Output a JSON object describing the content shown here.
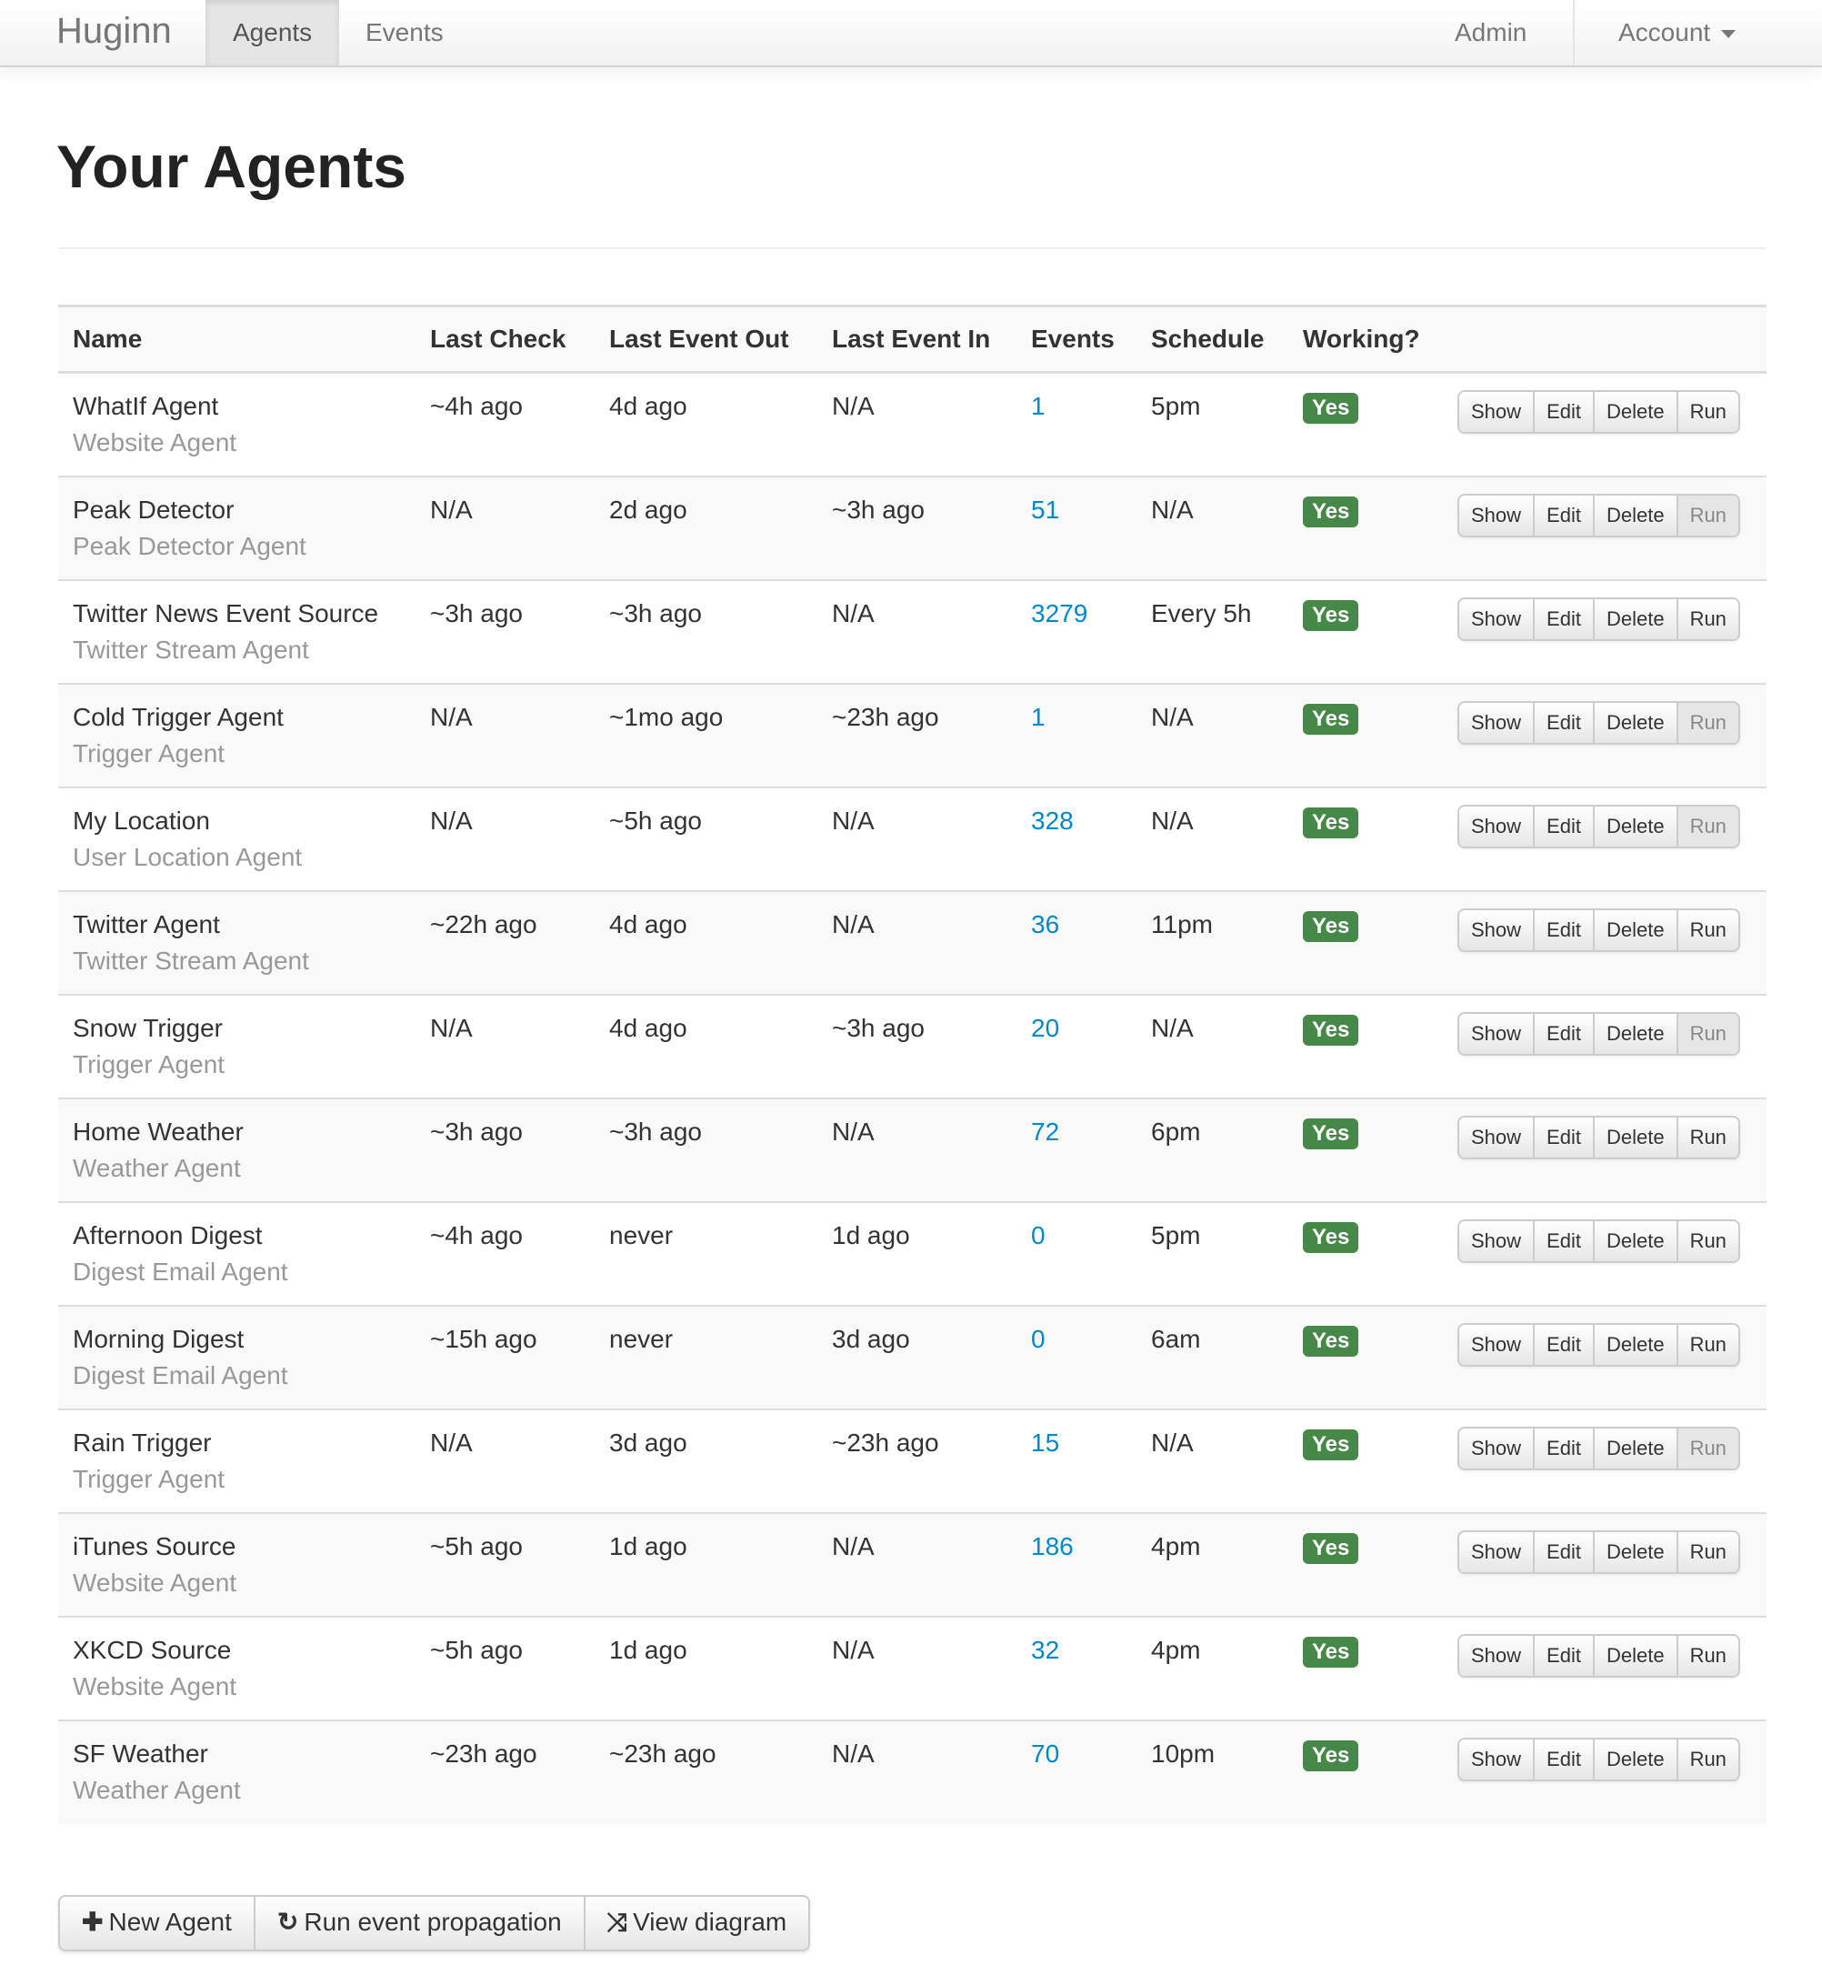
{
  "nav": {
    "brand": "Huginn",
    "items": [
      "Agents",
      "Events"
    ],
    "active": "Agents",
    "admin": "Admin",
    "account": "Account"
  },
  "page_title": "Your Agents",
  "table": {
    "headers": [
      "Name",
      "Last Check",
      "Last Event Out",
      "Last Event In",
      "Events",
      "Schedule",
      "Working?"
    ],
    "actions": [
      "Show",
      "Edit",
      "Delete",
      "Run"
    ],
    "working_label": "Yes",
    "rows": [
      {
        "name": "WhatIf Agent",
        "type": "Website Agent",
        "last_check": "~4h ago",
        "last_out": "4d ago",
        "last_in": "N/A",
        "events": "1",
        "schedule": "5pm",
        "run_enabled": true
      },
      {
        "name": "Peak Detector",
        "type": "Peak Detector Agent",
        "last_check": "N/A",
        "last_out": "2d ago",
        "last_in": "~3h ago",
        "events": "51",
        "schedule": "N/A",
        "run_enabled": false
      },
      {
        "name": "Twitter News Event Source",
        "type": "Twitter Stream Agent",
        "last_check": "~3h ago",
        "last_out": "~3h ago",
        "last_in": "N/A",
        "events": "3279",
        "schedule": "Every 5h",
        "run_enabled": true
      },
      {
        "name": "Cold Trigger Agent",
        "type": "Trigger Agent",
        "last_check": "N/A",
        "last_out": "~1mo ago",
        "last_in": "~23h ago",
        "events": "1",
        "schedule": "N/A",
        "run_enabled": false
      },
      {
        "name": "My Location",
        "type": "User Location Agent",
        "last_check": "N/A",
        "last_out": "~5h ago",
        "last_in": "N/A",
        "events": "328",
        "schedule": "N/A",
        "run_enabled": false
      },
      {
        "name": "Twitter Agent",
        "type": "Twitter Stream Agent",
        "last_check": "~22h ago",
        "last_out": "4d ago",
        "last_in": "N/A",
        "events": "36",
        "schedule": "11pm",
        "run_enabled": true
      },
      {
        "name": "Snow Trigger",
        "type": "Trigger Agent",
        "last_check": "N/A",
        "last_out": "4d ago",
        "last_in": "~3h ago",
        "events": "20",
        "schedule": "N/A",
        "run_enabled": false
      },
      {
        "name": "Home Weather",
        "type": "Weather Agent",
        "last_check": "~3h ago",
        "last_out": "~3h ago",
        "last_in": "N/A",
        "events": "72",
        "schedule": "6pm",
        "run_enabled": true
      },
      {
        "name": "Afternoon Digest",
        "type": "Digest Email Agent",
        "last_check": "~4h ago",
        "last_out": "never",
        "last_in": "1d ago",
        "events": "0",
        "schedule": "5pm",
        "run_enabled": true
      },
      {
        "name": "Morning Digest",
        "type": "Digest Email Agent",
        "last_check": "~15h ago",
        "last_out": "never",
        "last_in": "3d ago",
        "events": "0",
        "schedule": "6am",
        "run_enabled": true
      },
      {
        "name": "Rain Trigger",
        "type": "Trigger Agent",
        "last_check": "N/A",
        "last_out": "3d ago",
        "last_in": "~23h ago",
        "events": "15",
        "schedule": "N/A",
        "run_enabled": false
      },
      {
        "name": "iTunes Source",
        "type": "Website Agent",
        "last_check": "~5h ago",
        "last_out": "1d ago",
        "last_in": "N/A",
        "events": "186",
        "schedule": "4pm",
        "run_enabled": true
      },
      {
        "name": "XKCD Source",
        "type": "Website Agent",
        "last_check": "~5h ago",
        "last_out": "1d ago",
        "last_in": "N/A",
        "events": "32",
        "schedule": "4pm",
        "run_enabled": true
      },
      {
        "name": "SF Weather",
        "type": "Weather Agent",
        "last_check": "~23h ago",
        "last_out": "~23h ago",
        "last_in": "N/A",
        "events": "70",
        "schedule": "10pm",
        "run_enabled": true
      }
    ]
  },
  "footer_buttons": [
    {
      "label": "New Agent",
      "icon": "plus-icon",
      "glyph": "✚"
    },
    {
      "label": "Run event propagation",
      "icon": "refresh-icon",
      "glyph": "↻"
    },
    {
      "label": "View diagram",
      "icon": "random-icon",
      "glyph": "⤨"
    }
  ],
  "colors": {
    "link": "#0088cc",
    "success": "#468847"
  }
}
